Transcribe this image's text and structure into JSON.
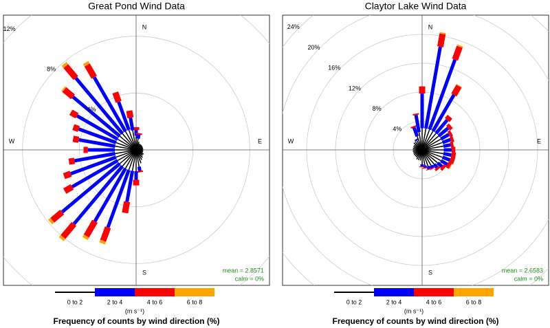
{
  "chart_data": [
    {
      "type": "windrose",
      "title": "Great Pond Wind Data",
      "x": [
        0,
        10,
        20,
        30,
        40,
        50,
        60,
        70,
        80,
        90,
        100,
        110,
        120,
        130,
        140,
        150,
        160,
        170,
        180,
        190,
        200,
        210,
        220,
        230,
        240,
        250,
        260,
        270,
        280,
        290,
        300,
        310,
        320,
        330,
        340,
        350
      ],
      "series": [
        {
          "name": "0 to 2",
          "color": "#000000",
          "values": [
            1.0,
            0.8,
            0.6,
            0.5,
            0.5,
            0.5,
            0.5,
            0.5,
            0.5,
            0.5,
            0.5,
            0.5,
            0.6,
            0.6,
            0.7,
            0.8,
            1.0,
            1.2,
            1.5,
            1.5,
            1.5,
            1.5,
            1.5,
            1.5,
            1.5,
            1.5,
            1.5,
            1.5,
            1.5,
            1.5,
            1.5,
            1.5,
            1.5,
            1.5,
            1.5,
            1.4
          ]
        },
        {
          "name": "2 to 4",
          "color": "#0000ff",
          "values": [
            0.4,
            0.3,
            0,
            0,
            0,
            0,
            0,
            0,
            0,
            0,
            0,
            0,
            0,
            0,
            0,
            0,
            0,
            0.3,
            0.6,
            2.2,
            4.3,
            4.3,
            5.3,
            5.3,
            3.7,
            3.4,
            2.9,
            1.9,
            2.6,
            2.8,
            3.3,
            4.3,
            5.1,
            4.4,
            2.1,
            0.9
          ]
        },
        {
          "name": "4 to 6",
          "color": "#ff0000",
          "values": [
            0.2,
            0.1,
            0,
            0,
            0,
            0,
            0,
            0,
            0,
            0,
            0,
            0,
            0,
            0,
            0,
            0,
            0,
            0.1,
            0.4,
            0.8,
            1.0,
            1.2,
            1.2,
            0.9,
            0.6,
            0.5,
            0.4,
            0.3,
            0.4,
            0.4,
            0.5,
            0.8,
            1.1,
            1.0,
            0.7,
            0.5
          ]
        },
        {
          "name": "6 to 8",
          "color": "#ffa500",
          "values": [
            0,
            0,
            0,
            0,
            0,
            0,
            0,
            0,
            0,
            0,
            0,
            0,
            0,
            0,
            0,
            0,
            0,
            0,
            0,
            0,
            0.2,
            0.2,
            0.2,
            0.2,
            0,
            0,
            0,
            0,
            0,
            0,
            0,
            0.1,
            0.2,
            0.2,
            0,
            0
          ]
        }
      ],
      "rlim": [
        0,
        12
      ],
      "rticks": [
        {
          "value": 4,
          "label": "4%"
        },
        {
          "value": 8,
          "label": "8%"
        },
        {
          "value": 12,
          "label": "12%"
        }
      ],
      "compass": [
        "N",
        "E",
        "S",
        "W"
      ],
      "annotations": [
        "mean = 2.8571",
        "calm = 0%"
      ],
      "legend_unit": "(m s⁻¹)",
      "legend_title": "Frequency of counts by wind direction (%)"
    },
    {
      "type": "windrose",
      "title": "Claytor Lake Wind Data",
      "x": [
        0,
        10,
        20,
        30,
        40,
        50,
        60,
        70,
        80,
        90,
        100,
        110,
        120,
        130,
        140,
        150,
        160,
        170,
        180,
        190,
        200,
        210,
        220,
        230,
        240,
        250,
        260,
        270,
        280,
        290,
        300,
        310,
        320,
        330,
        340,
        350
      ],
      "series": [
        {
          "name": "0 to 2",
          "color": "#000000",
          "values": [
            3.0,
            3.0,
            3.0,
            3.0,
            3.0,
            3.0,
            3.0,
            3.0,
            3.0,
            3.0,
            3.0,
            3.0,
            3.0,
            2.8,
            2.6,
            2.5,
            2.4,
            2.2,
            2.0,
            1.5,
            1.5,
            1.5,
            1.3,
            1.3,
            1.3,
            1.3,
            1.3,
            1.3,
            1.3,
            1.3,
            1.3,
            1.5,
            1.5,
            1.5,
            2.0,
            2.5
          ]
        },
        {
          "name": "2 to 4",
          "color": "#0000ff",
          "values": [
            4.8,
            11.5,
            10.3,
            5.8,
            2.4,
            1.7,
            1.3,
            1.2,
            1.0,
            1.1,
            1.1,
            1.1,
            1.0,
            0.8,
            0.6,
            0.4,
            0.4,
            0.3,
            0.3,
            0,
            0,
            0,
            0,
            0,
            0,
            0,
            0,
            0,
            0,
            0,
            0,
            0,
            0,
            0.2,
            1.3,
            2.4
          ]
        },
        {
          "name": "4 to 6",
          "color": "#ff0000",
          "values": [
            1.0,
            1.8,
            1.9,
            1.4,
            0.6,
            0.5,
            0.4,
            0.4,
            0.4,
            0.5,
            0.6,
            0.6,
            0.5,
            0.4,
            0.3,
            0.1,
            0.1,
            0.1,
            0.1,
            0,
            0,
            0,
            0,
            0,
            0,
            0,
            0,
            0,
            0,
            0,
            0,
            0,
            0,
            0,
            0.2,
            0.2
          ]
        },
        {
          "name": "6 to 8",
          "color": "#ffa500",
          "values": [
            0,
            0.2,
            0.2,
            0.1,
            0,
            0,
            0,
            0,
            0,
            0,
            0,
            0,
            0.1,
            0,
            0,
            0,
            0,
            0,
            0,
            0,
            0,
            0,
            0,
            0,
            0,
            0,
            0,
            0,
            0,
            0,
            0,
            0,
            0,
            0,
            0,
            0
          ]
        }
      ],
      "rlim": [
        0,
        24
      ],
      "rticks": [
        {
          "value": 4,
          "label": "4%"
        },
        {
          "value": 8,
          "label": "8%"
        },
        {
          "value": 12,
          "label": "12%"
        },
        {
          "value": 16,
          "label": "16%"
        },
        {
          "value": 20,
          "label": "20%"
        },
        {
          "value": 24,
          "label": "24%"
        }
      ],
      "compass": [
        "N",
        "E",
        "S",
        "W"
      ],
      "annotations": [
        "mean = 2.6583",
        "calm = 0%"
      ],
      "legend_unit": "(m s⁻¹)",
      "legend_title": "Frequency of counts by wind direction (%)"
    }
  ]
}
